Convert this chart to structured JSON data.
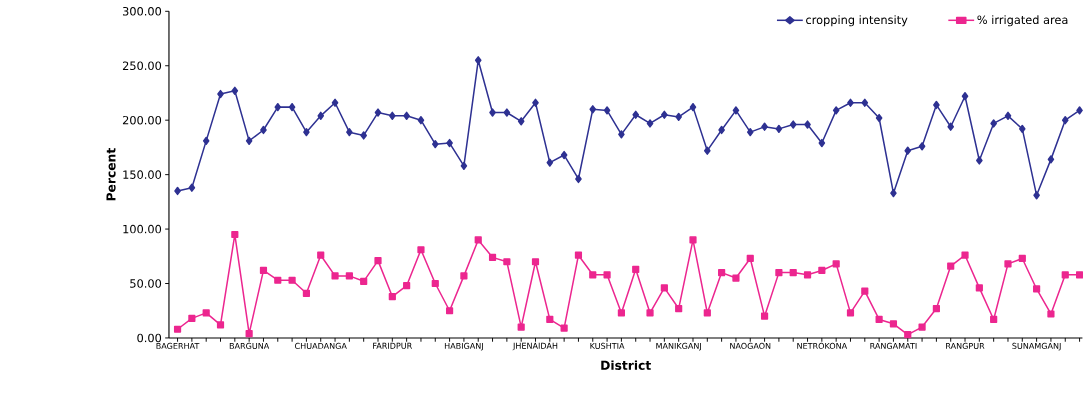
{
  "chart_data": {
    "type": "line",
    "xlabel": "District",
    "ylabel": "Percent",
    "categories": [
      "BAGERHAT",
      null,
      null,
      null,
      null,
      "BARGUNA",
      null,
      null,
      null,
      null,
      "CHUADANGA",
      null,
      null,
      null,
      null,
      "FARIDPUR",
      null,
      null,
      null,
      null,
      "HABIGANJ",
      null,
      null,
      null,
      null,
      "JHENAIDAH",
      null,
      null,
      null,
      null,
      "KUSHTIA",
      null,
      null,
      null,
      null,
      "MANIKGANJ",
      null,
      null,
      null,
      null,
      "NAOGAON",
      null,
      null,
      null,
      null,
      "NETROKONA",
      null,
      null,
      null,
      null,
      "RANGAMATI",
      null,
      null,
      null,
      null,
      "RANGPUR",
      null,
      null,
      null,
      null,
      "SUNAMGANJ",
      null,
      null,
      null
    ],
    "series": [
      {
        "name": "cropping intensity",
        "color": "#2e3192",
        "marker": "diamond",
        "values": [
          135,
          138,
          181,
          224,
          227,
          181,
          191,
          212,
          212,
          189,
          204,
          216,
          189,
          186,
          207,
          204,
          204,
          200,
          178,
          179,
          158,
          255,
          207,
          207,
          199,
          216,
          161,
          168,
          146,
          210,
          209,
          187,
          205,
          197,
          205,
          203,
          212,
          172,
          191,
          209,
          189,
          194,
          192,
          196,
          196,
          179,
          209,
          216,
          216,
          202,
          133,
          172,
          176,
          214,
          194,
          222,
          163,
          197,
          204,
          192,
          131,
          164,
          200,
          209
        ]
      },
      {
        "name": "% irrigated area",
        "color": "#ec268f",
        "marker": "square",
        "values": [
          8,
          18,
          23,
          12,
          95,
          4,
          62,
          53,
          53,
          41,
          76,
          57,
          57,
          52,
          71,
          38,
          48,
          81,
          50,
          25,
          57,
          90,
          74,
          70,
          10,
          70,
          17,
          9,
          76,
          58,
          58,
          23,
          63,
          23,
          46,
          27,
          90,
          23,
          60,
          55,
          73,
          20,
          60,
          60,
          58,
          62,
          68,
          23,
          43,
          17,
          13,
          3,
          10,
          27,
          66,
          76,
          46,
          17,
          68,
          73,
          45,
          22,
          58,
          58
        ]
      }
    ],
    "ylim": [
      0,
      300
    ],
    "yticks": [
      {
        "value": 0,
        "label": "0.00"
      },
      {
        "value": 50,
        "label": "50.00"
      },
      {
        "value": 100,
        "label": "100.00"
      },
      {
        "value": 150,
        "label": "150.00"
      },
      {
        "value": 200,
        "label": "200.00"
      },
      {
        "value": 250,
        "label": "250.00"
      },
      {
        "value": 300,
        "label": "300.00"
      }
    ],
    "grid": false,
    "legend": "top right",
    "line_style": "solid"
  }
}
